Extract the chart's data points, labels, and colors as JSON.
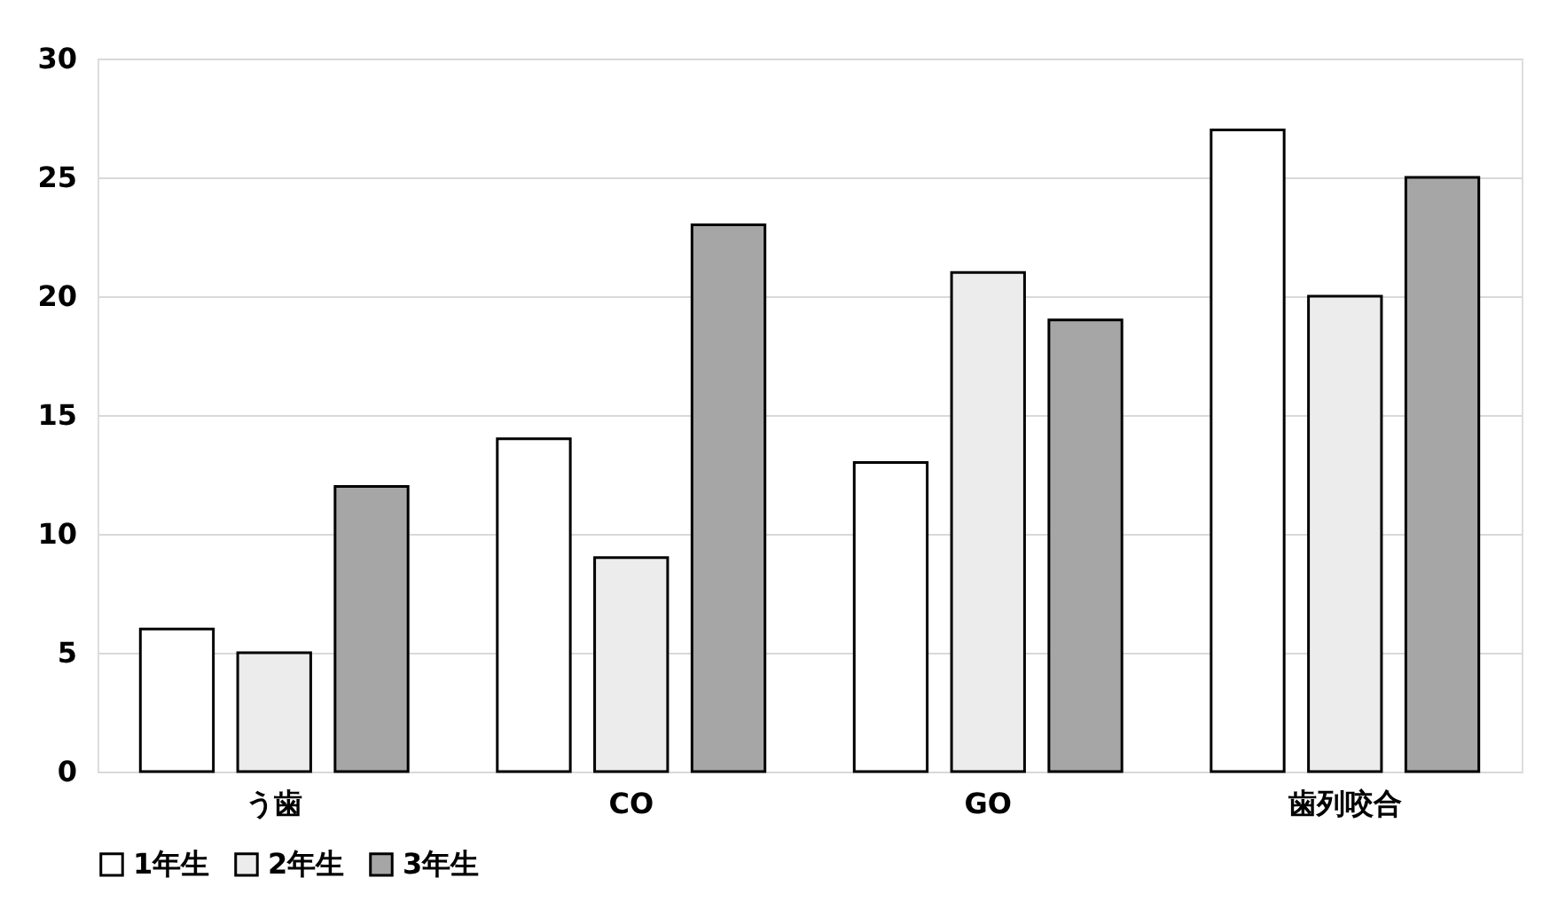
{
  "chart_data": {
    "type": "bar",
    "categories": [
      "う歯",
      "CO",
      "GO",
      "歯列咬合"
    ],
    "series": [
      {
        "name": "1年生",
        "color": "#ffffff",
        "values": [
          6,
          14,
          13,
          27
        ]
      },
      {
        "name": "2年生",
        "color": "#ececec",
        "values": [
          5,
          9,
          21,
          20
        ]
      },
      {
        "name": "3年生",
        "color": "#a6a6a6",
        "values": [
          12,
          23,
          19,
          25
        ]
      }
    ],
    "ylim": [
      0,
      30
    ],
    "yticks": [
      0,
      5,
      10,
      15,
      20,
      25,
      30
    ],
    "grid": "y",
    "legend": "bottom"
  }
}
